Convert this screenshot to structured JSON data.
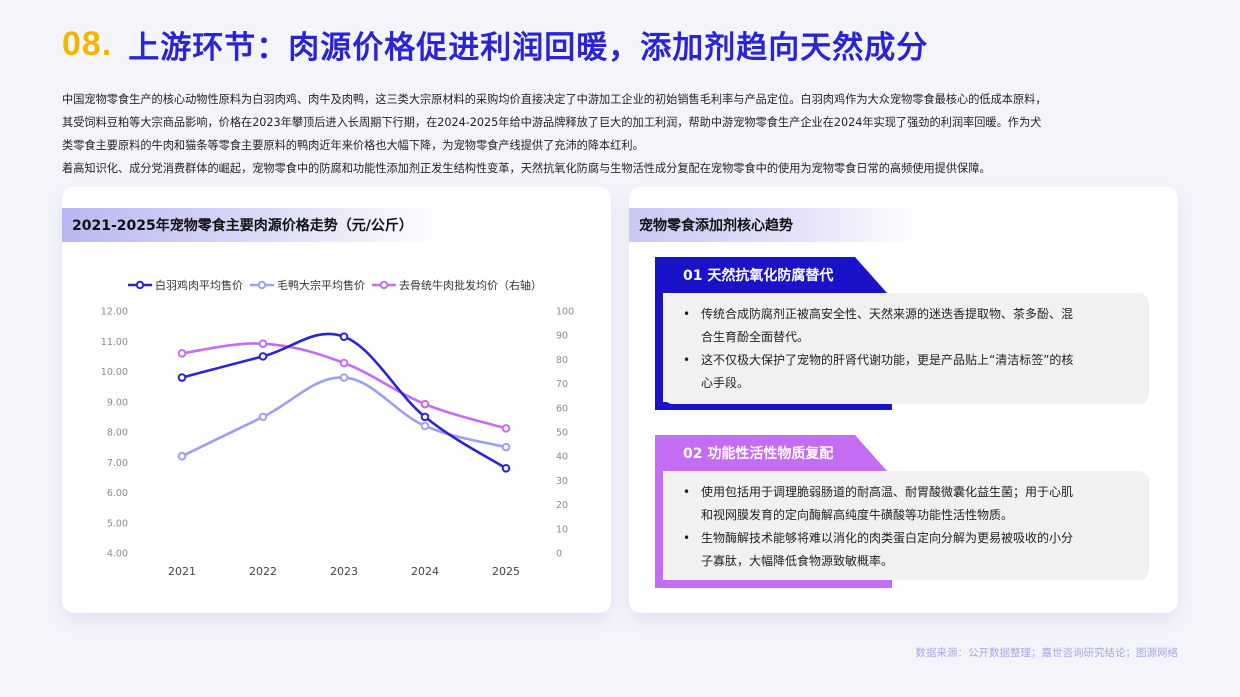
{
  "header": {
    "number": "08.",
    "title": "上游环节：肉源价格促进利润回暖，添加剂趋向天然成分"
  },
  "intro": [
    "中国宠物零食生产的核心动物性原料为白羽肉鸡、肉牛及肉鸭，这三类大宗原材料的采购均价直接决定了中游加工企业的初始销售毛利率与产品定位。白羽肉鸡作为大众宠物零食最核心的低成本原料，",
    "其受饲料豆粕等大宗商品影响，价格在2023年攀顶后进入长周期下行期，在2024-2025年给中游品牌释放了巨大的加工利润，帮助中游宠物零食生产企业在2024年实现了强劲的利润率回暖。作为犬",
    "类零食主要原料的牛肉和猫条等零食主要原料的鸭肉近年来价格也大幅下降，为宠物零食产线提供了充沛的降本红利。",
    "着高知识化、成分党消费群体的崛起，宠物零食中的防腐和功能性添加剂正发生结构性变革，天然抗氧化防腐与生物活性成分复配在宠物零食中的使用为宠物零食日常的高频使用提供保障。"
  ],
  "left_card": {
    "title": "2021-2025年宠物零食主要肉源价格走势（元/公斤）"
  },
  "chart_data": {
    "type": "line",
    "categories": [
      "2021",
      "2022",
      "2023",
      "2024",
      "2025"
    ],
    "y_left": {
      "ticks": [
        "12.00",
        "11.00",
        "10.00",
        "9.00",
        "8.00",
        "7.00",
        "6.00",
        "5.00",
        "4.00"
      ],
      "ylim": [
        4,
        12
      ]
    },
    "y_right": {
      "ticks": [
        "100",
        "90",
        "80",
        "70",
        "60",
        "50",
        "40",
        "30",
        "20",
        "10",
        "0"
      ],
      "ylim": [
        0,
        100
      ]
    },
    "series": [
      {
        "name": "白羽鸡肉平均售价",
        "axis": "left",
        "color": "#2b24d6",
        "values": [
          9.8,
          10.5,
          11.15,
          8.5,
          6.8
        ]
      },
      {
        "name": "毛鸭大宗平均售价",
        "axis": "left",
        "color": "#9d9ff0",
        "values": [
          7.2,
          8.5,
          9.8,
          8.2,
          7.5
        ]
      },
      {
        "name": "去骨统牛肉批发均价（右轴）",
        "axis": "right",
        "color": "#c46cf3",
        "values": [
          82.5,
          86.5,
          78.5,
          61.5,
          51.5
        ]
      }
    ],
    "grid": false,
    "legend_position": "top"
  },
  "right_card": {
    "title": "宠物零食添加剂核心趋势",
    "sections": [
      {
        "title": "01 天然抗氧化防腐替代",
        "bullets": [
          [
            "传统合成防腐剂正被高安全性、天然来源的迷迭香提取物、茶多酚、混",
            "合生育酚全面替代。"
          ],
          [
            "这不仅极大保护了宠物的肝肾代谢功能，更是产品贴上“清洁标签”的核",
            "心手段。"
          ]
        ]
      },
      {
        "title": "02 功能性活性物质复配",
        "bullets": [
          [
            "使用包括用于调理脆弱肠道的耐高温、耐胃酸微囊化益生菌；用于心肌",
            "和视网膜发育的定向酶解高纯度牛磺酸等功能性活性物质。"
          ],
          [
            "生物酶解技术能够将难以消化的肉类蛋白定向分解为更易被吸收的小分",
            "子寡肽，大幅降低食物源致敏概率。"
          ]
        ]
      }
    ]
  },
  "footer": {
    "source": "数据来源：公开数据整理；嘉世咨询研究结论；图源网络"
  }
}
